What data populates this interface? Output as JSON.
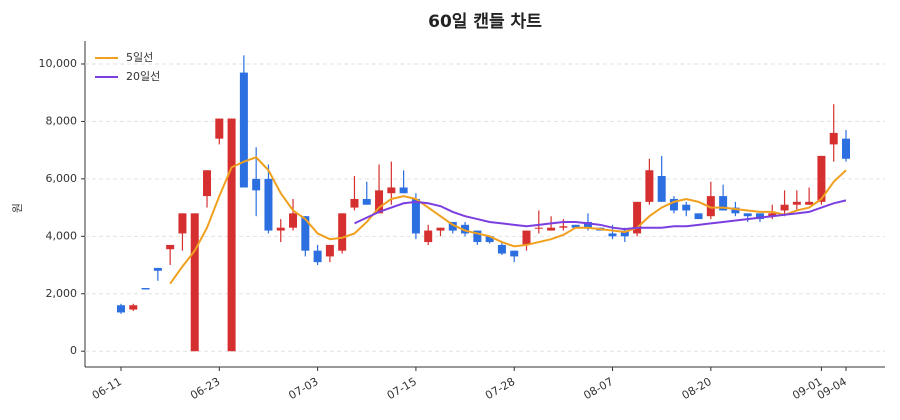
{
  "chart_data": {
    "type": "candlestick",
    "title": "60일 캔들 차트",
    "y_label": "원",
    "categories": [
      "06-11",
      null,
      null,
      null,
      null,
      null,
      null,
      null,
      "06-23",
      null,
      null,
      null,
      null,
      null,
      null,
      null,
      "07-03",
      null,
      null,
      null,
      null,
      null,
      null,
      null,
      "07-15",
      null,
      null,
      null,
      null,
      null,
      null,
      null,
      "07-28",
      null,
      null,
      null,
      null,
      null,
      null,
      null,
      "08-07",
      null,
      null,
      null,
      null,
      null,
      null,
      null,
      "08-20",
      null,
      null,
      null,
      null,
      null,
      null,
      null,
      null,
      "09-01",
      null,
      "09-04"
    ],
    "open": [
      1600,
      1450,
      2200,
      2900,
      3550,
      4100,
      0,
      5400,
      7400,
      0,
      9700,
      6000,
      6000,
      4200,
      4300,
      4700,
      3500,
      3300,
      3500,
      5000,
      5300,
      4800,
      5500,
      5700,
      5300,
      3800,
      4200,
      4500,
      4400,
      4200,
      4000,
      3700,
      3500,
      3700,
      4300,
      4200,
      4300,
      4400,
      4500,
      4300,
      4100,
      4200,
      4100,
      5200,
      6100,
      5300,
      5100,
      4800,
      4700,
      5400,
      5000,
      4800,
      4800,
      4700,
      4900,
      5100,
      5100,
      5200,
      7200,
      7400
    ],
    "high": [
      1650,
      1650,
      2200,
      2900,
      3700,
      4800,
      4800,
      6300,
      8100,
      8100,
      10300,
      7100,
      6500,
      4600,
      5300,
      4700,
      3700,
      3700,
      4800,
      6100,
      5900,
      6500,
      6600,
      6300,
      5500,
      4400,
      4300,
      4500,
      4500,
      4200,
      4000,
      3800,
      3500,
      4200,
      4900,
      4700,
      4600,
      4400,
      4800,
      4300,
      4400,
      4300,
      5200,
      6700,
      6800,
      5400,
      5200,
      4800,
      5900,
      5800,
      5200,
      4800,
      4800,
      5100,
      5600,
      5600,
      5700,
      6800,
      8600,
      7700
    ],
    "low": [
      1300,
      1400,
      2150,
      2450,
      3000,
      3500,
      0,
      5000,
      7200,
      0,
      5700,
      4700,
      4100,
      3800,
      4200,
      3300,
      3000,
      3100,
      3400,
      4900,
      5100,
      4800,
      5100,
      5500,
      3900,
      3700,
      4000,
      4100,
      4000,
      3700,
      3750,
      3350,
      3100,
      3500,
      4100,
      4200,
      4200,
      4300,
      4200,
      4200,
      3900,
      3800,
      4000,
      5100,
      5200,
      4800,
      4700,
      4600,
      4600,
      4900,
      4700,
      4500,
      4500,
      4600,
      4700,
      4900,
      5100,
      5100,
      6600,
      6600
    ],
    "close": [
      1350,
      1600,
      2150,
      2800,
      3700,
      4800,
      4800,
      6300,
      8100,
      8100,
      5700,
      5600,
      4200,
      4300,
      4800,
      3500,
      3100,
      3700,
      4800,
      5300,
      5100,
      5600,
      5700,
      5500,
      4100,
      4200,
      4300,
      4200,
      4100,
      3800,
      3800,
      3400,
      3300,
      4200,
      4300,
      4300,
      4350,
      4300,
      4300,
      4200,
      4000,
      4000,
      5200,
      6300,
      5200,
      4900,
      4900,
      4600,
      5400,
      4900,
      4800,
      4700,
      4600,
      4800,
      5100,
      5200,
      5200,
      6800,
      7600,
      6700
    ],
    "up_color": "#d62f2f",
    "down_color": "#2c6fe0",
    "series": [
      {
        "name": "5일선",
        "color": "#f0a01e",
        "values": [
          null,
          null,
          null,
          null,
          2350,
          2950,
          3500,
          4300,
          5400,
          6400,
          6600,
          6750,
          6300,
          5500,
          4900,
          4600,
          4100,
          3900,
          3950,
          4100,
          4500,
          5000,
          5300,
          5400,
          5300,
          5000,
          4700,
          4400,
          4200,
          4100,
          4000,
          3800,
          3650,
          3700,
          3800,
          3900,
          4050,
          4300,
          4300,
          4250,
          4200,
          4150,
          4300,
          4700,
          5000,
          5200,
          5300,
          5200,
          5000,
          5000,
          4950,
          4900,
          4850,
          4850,
          4750,
          4900,
          5000,
          5300,
          5900,
          6300
        ]
      },
      {
        "name": "20일선",
        "color": "#7b3fe0",
        "values": [
          null,
          null,
          null,
          null,
          null,
          null,
          null,
          null,
          null,
          null,
          null,
          null,
          null,
          null,
          null,
          null,
          null,
          null,
          null,
          4450,
          4650,
          4850,
          5000,
          5150,
          5200,
          5150,
          5050,
          4850,
          4700,
          4600,
          4500,
          4450,
          4400,
          4350,
          4400,
          4450,
          4500,
          4500,
          4450,
          4400,
          4300,
          4250,
          4300,
          4300,
          4300,
          4350,
          4350,
          4400,
          4450,
          4500,
          4550,
          4600,
          4650,
          4700,
          4750,
          4800,
          4850,
          5000,
          5150,
          5250
        ]
      }
    ],
    "ylim": [
      -550,
      10800
    ],
    "yticks": [
      0,
      {
        "value": 2000,
        "label": "2,000"
      },
      {
        "value": 4000,
        "label": "4,000"
      },
      {
        "value": 6000,
        "label": "6,000"
      },
      {
        "value": 8000,
        "label": "8,000"
      },
      {
        "value": 10000,
        "label": "10,000"
      }
    ],
    "grid": true,
    "legend": "upper left"
  }
}
